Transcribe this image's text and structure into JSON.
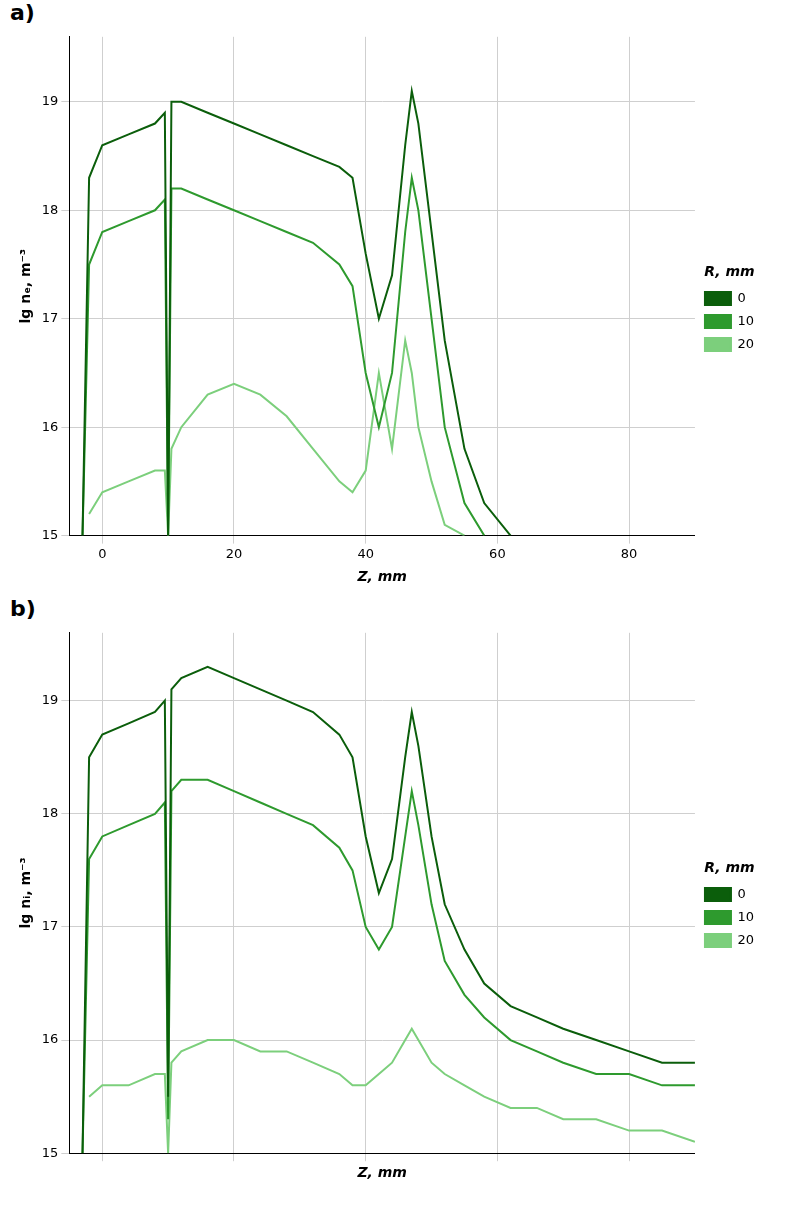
{
  "chart_data": [
    {
      "type": "line",
      "panel": "a)",
      "x_label": "Z, mm",
      "y_label": "lg nₑ, m⁻³",
      "legend_title": "R, mm",
      "x": [
        -3,
        -2,
        0,
        4,
        8,
        9.5,
        10,
        10.5,
        12,
        16,
        20,
        24,
        28,
        32,
        36,
        38,
        40,
        42,
        44,
        46,
        47,
        48,
        50,
        52,
        55,
        58,
        62,
        66,
        70,
        75,
        80,
        85,
        90
      ],
      "series": [
        {
          "name": "0",
          "color": "#0b5e0b",
          "values": [
            15,
            18.3,
            18.6,
            18.7,
            18.8,
            18.9,
            15,
            19.0,
            19.0,
            18.9,
            18.8,
            18.7,
            18.6,
            18.5,
            18.4,
            18.3,
            17.6,
            17.0,
            17.4,
            18.6,
            19.1,
            18.8,
            17.8,
            16.8,
            15.8,
            15.3,
            15.0,
            null,
            null,
            null,
            null,
            null,
            null
          ]
        },
        {
          "name": "10",
          "color": "#2e9a2e",
          "values": [
            15,
            17.5,
            17.8,
            17.9,
            18.0,
            18.1,
            15,
            18.2,
            18.2,
            18.1,
            18.0,
            17.9,
            17.8,
            17.7,
            17.5,
            17.3,
            16.5,
            16.0,
            16.5,
            17.8,
            18.3,
            18.0,
            17.0,
            16.0,
            15.3,
            15.0,
            null,
            null,
            null,
            null,
            null,
            null,
            null
          ]
        },
        {
          "name": "20",
          "color": "#7ccf7c",
          "values": [
            null,
            15.2,
            15.4,
            15.5,
            15.6,
            15.6,
            15,
            15.8,
            16.0,
            16.3,
            16.4,
            16.3,
            16.1,
            15.8,
            15.5,
            15.4,
            15.6,
            16.5,
            15.8,
            16.8,
            16.5,
            16.0,
            15.5,
            15.1,
            15.0,
            null,
            null,
            null,
            null,
            null,
            null,
            null,
            null
          ]
        }
      ],
      "xlim": [
        -5,
        90
      ],
      "xticks": [
        0,
        20,
        40,
        60,
        80
      ],
      "ylim": [
        15,
        19.6
      ],
      "yticks": [
        15,
        16,
        17,
        18,
        19
      ],
      "grid": true,
      "legend": "right"
    },
    {
      "type": "line",
      "panel": "b)",
      "x_label": "Z, mm",
      "y_label": "lg nᵢ, m⁻³",
      "legend_title": "R, mm",
      "x": [
        -3,
        -2,
        0,
        4,
        8,
        9.5,
        10,
        10.5,
        12,
        16,
        20,
        24,
        28,
        32,
        36,
        38,
        40,
        42,
        44,
        46,
        47,
        48,
        50,
        52,
        55,
        58,
        62,
        66,
        70,
        75,
        80,
        85,
        90
      ],
      "series": [
        {
          "name": "0",
          "color": "#0b5e0b",
          "values": [
            15,
            18.5,
            18.7,
            18.8,
            18.9,
            19.0,
            15.5,
            19.1,
            19.2,
            19.3,
            19.2,
            19.1,
            19.0,
            18.9,
            18.7,
            18.5,
            17.8,
            17.3,
            17.6,
            18.5,
            18.9,
            18.6,
            17.8,
            17.2,
            16.8,
            16.5,
            16.3,
            16.2,
            16.1,
            16.0,
            15.9,
            15.8,
            15.8
          ]
        },
        {
          "name": "10",
          "color": "#2e9a2e",
          "values": [
            15,
            17.6,
            17.8,
            17.9,
            18.0,
            18.1,
            15.3,
            18.2,
            18.3,
            18.3,
            18.2,
            18.1,
            18.0,
            17.9,
            17.7,
            17.5,
            17.0,
            16.8,
            17.0,
            17.8,
            18.2,
            17.9,
            17.2,
            16.7,
            16.4,
            16.2,
            16.0,
            15.9,
            15.8,
            15.7,
            15.7,
            15.6,
            15.6
          ]
        },
        {
          "name": "20",
          "color": "#7ccf7c",
          "values": [
            null,
            15.5,
            15.6,
            15.6,
            15.7,
            15.7,
            15.0,
            15.8,
            15.9,
            16.0,
            16.0,
            15.9,
            15.9,
            15.8,
            15.7,
            15.6,
            15.6,
            15.7,
            15.8,
            16.0,
            16.1,
            16.0,
            15.8,
            15.7,
            15.6,
            15.5,
            15.4,
            15.4,
            15.3,
            15.3,
            15.2,
            15.2,
            15.1
          ]
        }
      ],
      "xlim": [
        -5,
        90
      ],
      "xticks": [
        0,
        20,
        40,
        60,
        80
      ],
      "ylim": [
        15,
        19.6
      ],
      "yticks": [
        15,
        16,
        17,
        18,
        19
      ],
      "grid": true,
      "legend": "right",
      "tick_labels": "y"
    }
  ]
}
